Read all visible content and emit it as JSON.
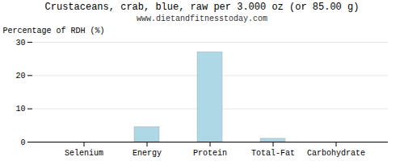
{
  "chart_data": {
    "type": "bar",
    "title": "Crustaceans, crab, blue, raw per 3.000 oz (or 85.00 g)",
    "subtitle": "www.dietandfitnesstoday.com",
    "categories": [
      "Selenium",
      "Energy",
      "Protein",
      "Total-Fat",
      "Carbohydrate"
    ],
    "values": [
      0,
      4.5,
      27,
      1.0,
      0
    ],
    "color": "#add8e6",
    "ylabel": "Percentage of RDH (%)",
    "ylim": [
      0,
      30
    ],
    "yticks": [
      0,
      10,
      20,
      30
    ],
    "grid": true
  }
}
